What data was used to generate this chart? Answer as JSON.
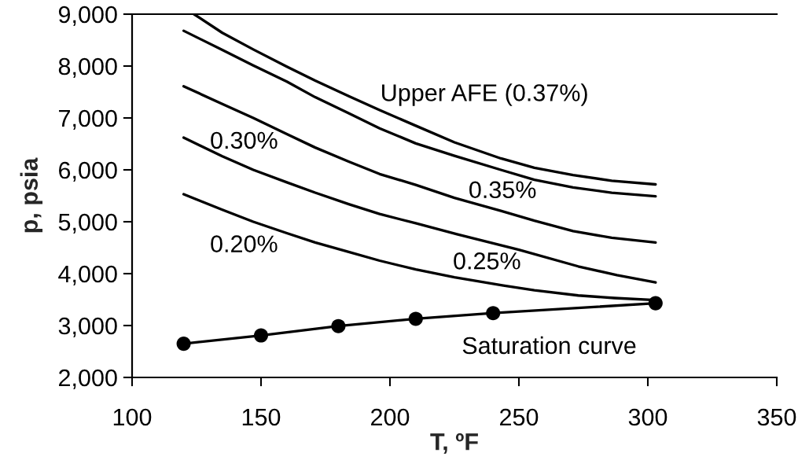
{
  "chart_data": {
    "type": "line",
    "xlabel": "T, ºF",
    "ylabel": "p, psia",
    "xlim": [
      100,
      350
    ],
    "xticks": [
      100,
      150,
      200,
      250,
      300,
      350
    ],
    "ylim": [
      2000,
      9000
    ],
    "yticks": [
      {
        "value": 2000,
        "label": "2,000"
      },
      {
        "value": 3000,
        "label": "3,000"
      },
      {
        "value": 4000,
        "label": "4,000"
      },
      {
        "value": 5000,
        "label": "5,000"
      },
      {
        "value": 6000,
        "label": "6,000"
      },
      {
        "value": 7000,
        "label": "7,000"
      },
      {
        "value": 8000,
        "label": "8,000"
      },
      {
        "value": 9000,
        "label": "9,000"
      }
    ],
    "series": [
      {
        "name": "Upper AFE (0.37%)",
        "color": "#000000",
        "x": [
          124,
          135,
          147,
          160,
          171,
          184,
          196,
          210,
          225,
          243,
          256,
          271,
          286,
          303
        ],
        "values": [
          9000,
          8640,
          8320,
          7990,
          7720,
          7420,
          7150,
          6850,
          6530,
          6220,
          6040,
          5900,
          5790,
          5720
        ]
      },
      {
        "name": "0.35%",
        "color": "#000000",
        "x": [
          120,
          135,
          147,
          160,
          171,
          184,
          196,
          210,
          225,
          243,
          256,
          271,
          286,
          303
        ],
        "values": [
          8680,
          8310,
          8010,
          7700,
          7400,
          7090,
          6800,
          6510,
          6270,
          6000,
          5810,
          5660,
          5560,
          5490
        ]
      },
      {
        "name": "0.30%",
        "color": "#000000",
        "x": [
          120,
          135,
          147,
          160,
          171,
          184,
          196,
          210,
          225,
          243,
          256,
          271,
          286,
          303
        ],
        "values": [
          7610,
          7270,
          7000,
          6690,
          6430,
          6160,
          5920,
          5710,
          5460,
          5210,
          5020,
          4820,
          4690,
          4600
        ]
      },
      {
        "name": "0.25%",
        "color": "#000000",
        "x": [
          120,
          135,
          147,
          160,
          171,
          184,
          196,
          210,
          226,
          250,
          273,
          288,
          303
        ],
        "values": [
          6620,
          6260,
          6000,
          5760,
          5560,
          5340,
          5150,
          4970,
          4760,
          4460,
          4140,
          3970,
          3830
        ]
      },
      {
        "name": "0.20%",
        "color": "#000000",
        "x": [
          120,
          135,
          147,
          160,
          171,
          184,
          196,
          210,
          225,
          244,
          256,
          273,
          287,
          303
        ],
        "values": [
          5530,
          5230,
          5000,
          4780,
          4600,
          4420,
          4250,
          4080,
          3930,
          3770,
          3680,
          3580,
          3530,
          3490
        ]
      },
      {
        "name": "Saturation curve",
        "color": "#000000",
        "marker": "circle",
        "x": [
          120,
          150,
          180,
          210,
          240,
          303
        ],
        "values": [
          2650,
          2810,
          2990,
          3130,
          3240,
          3430
        ]
      }
    ]
  }
}
